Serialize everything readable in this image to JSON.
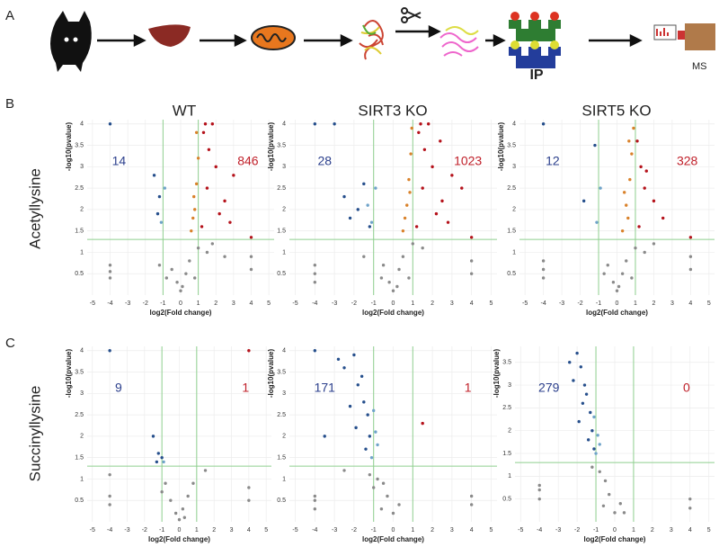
{
  "panel_labels": [
    "A",
    "B",
    "C"
  ],
  "workflow_labels": [
    "IP",
    "MS"
  ],
  "column_titles": [
    "WT",
    "SIRT3 KO",
    "SIRT5 KO"
  ],
  "row_labels": [
    "Acetyllysine",
    "Succinyllysine"
  ],
  "chart_data": [
    {
      "type": "scatter",
      "x_label": "log2(Fold change)",
      "y_label": "-log10(pvalue)",
      "xlim": [
        -5.3,
        5.3
      ],
      "ylim": [
        0,
        4.1
      ],
      "xticks": [
        -5,
        -4,
        -3,
        -2,
        -1,
        0,
        1,
        2,
        3,
        4,
        5
      ],
      "yticks": [
        0.5,
        1,
        1.5,
        2,
        2.5,
        3,
        3.5,
        4
      ],
      "grid": true,
      "x_thresholds": [
        -1,
        1
      ],
      "y_threshold": 1.3,
      "down_count": 14,
      "up_count": 846,
      "series": [
        {
          "color": "#8a8a8a",
          "x": [
            -4,
            -4,
            -4,
            0,
            0.3,
            -0.5,
            0.5,
            1,
            -0.2,
            4,
            4,
            0.8,
            -1.2,
            1.5,
            2.5,
            0.1,
            -0.8,
            1.8
          ],
          "values": [
            0.4,
            0.55,
            0.7,
            0.1,
            0.5,
            0.6,
            0.8,
            1.1,
            0.3,
            0.6,
            0.9,
            0.4,
            0.7,
            1.0,
            0.9,
            0.2,
            0.4,
            1.2
          ]
        },
        {
          "color": "#d9822b",
          "x": [
            0.6,
            0.8,
            0.9,
            1.0,
            0.7,
            0.9,
            0.75
          ],
          "values": [
            1.5,
            2,
            2.6,
            3.2,
            1.8,
            3.8,
            2.3
          ]
        },
        {
          "color": "#b5121b",
          "x": [
            1.2,
            1.5,
            2,
            2.5,
            3,
            1.3,
            1.8,
            2.2,
            4,
            1.6,
            2.8,
            1.4
          ],
          "values": [
            1.6,
            2.5,
            3,
            2.2,
            2.8,
            3.8,
            4,
            1.9,
            1.35,
            3.4,
            1.7,
            4
          ]
        },
        {
          "color": "#264f8c",
          "x": [
            -4,
            -1.2,
            -1.5,
            -1.3
          ],
          "values": [
            4,
            2.3,
            2.8,
            1.9
          ]
        },
        {
          "color": "#6fa3c9",
          "x": [
            -1.1,
            -0.9
          ],
          "values": [
            1.7,
            2.5
          ]
        }
      ]
    },
    {
      "type": "scatter",
      "x_label": "log2(Fold change)",
      "y_label": "-log10(pvalue)",
      "xlim": [
        -5.3,
        5.3
      ],
      "ylim": [
        0,
        4.1
      ],
      "xticks": [
        -5,
        -4,
        -3,
        -2,
        -1,
        0,
        1,
        2,
        3,
        4,
        5
      ],
      "yticks": [
        0.5,
        1,
        1.5,
        2,
        2.5,
        3,
        3.5,
        4
      ],
      "grid": true,
      "x_thresholds": [
        -1,
        1
      ],
      "y_threshold": 1.3,
      "down_count": 28,
      "up_count": 1023,
      "series": [
        {
          "color": "#8a8a8a",
          "x": [
            -4,
            -4,
            -4,
            0,
            0.3,
            -0.5,
            0.5,
            1,
            -0.2,
            4,
            4,
            0.8,
            -1.5,
            1.5,
            -0.6,
            0.2
          ],
          "values": [
            0.3,
            0.5,
            0.7,
            0.1,
            0.6,
            0.7,
            0.9,
            1.2,
            0.3,
            0.5,
            0.8,
            0.4,
            0.9,
            1.1,
            0.4,
            0.2
          ]
        },
        {
          "color": "#d9822b",
          "x": [
            0.5,
            0.7,
            0.8,
            0.9,
            0.6,
            0.95,
            0.85
          ],
          "values": [
            1.5,
            2.1,
            2.7,
            3.3,
            1.8,
            3.9,
            2.4
          ]
        },
        {
          "color": "#b5121b",
          "x": [
            1.2,
            1.5,
            2,
            2.5,
            3,
            1.3,
            1.8,
            2.2,
            4,
            1.6,
            2.8,
            1.4,
            3.5,
            2.4
          ],
          "values": [
            1.6,
            2.5,
            3,
            2.2,
            2.8,
            3.8,
            4,
            1.9,
            1.35,
            3.4,
            1.7,
            4,
            2.5,
            3.6
          ]
        },
        {
          "color": "#264f8c",
          "x": [
            -4,
            -3,
            -2.5,
            -1.8,
            -1.5,
            -2.2,
            -1.2
          ],
          "values": [
            4,
            4,
            2.3,
            2.0,
            2.6,
            1.8,
            1.6
          ]
        },
        {
          "color": "#6fa3c9",
          "x": [
            -1.1,
            -0.9,
            -1.3
          ],
          "values": [
            1.7,
            2.5,
            2.1
          ]
        }
      ]
    },
    {
      "type": "scatter",
      "x_label": "log2(Fold change)",
      "y_label": "-log10(pvalue)",
      "xlim": [
        -5.3,
        5.3
      ],
      "ylim": [
        0,
        4.1
      ],
      "xticks": [
        -5,
        -4,
        -3,
        -2,
        -1,
        0,
        1,
        2,
        3,
        4,
        5
      ],
      "yticks": [
        0.5,
        1,
        1.5,
        2,
        2.5,
        3,
        3.5,
        4
      ],
      "grid": true,
      "x_thresholds": [
        -1,
        1
      ],
      "y_threshold": 1.3,
      "down_count": 12,
      "up_count": 328,
      "series": [
        {
          "color": "#8a8a8a",
          "x": [
            -4,
            -4,
            -4,
            0,
            0.3,
            -0.5,
            0.5,
            1,
            -0.2,
            4,
            4,
            0.8,
            1.5,
            -0.7,
            0.1,
            2
          ],
          "values": [
            0.4,
            0.6,
            0.8,
            0.1,
            0.5,
            0.7,
            0.8,
            1.1,
            0.3,
            0.6,
            0.9,
            0.4,
            1.0,
            0.5,
            0.2,
            1.2
          ]
        },
        {
          "color": "#d9822b",
          "x": [
            0.3,
            0.5,
            0.7,
            0.8,
            0.6,
            0.9,
            0.4,
            0.65
          ],
          "values": [
            1.5,
            2.1,
            2.7,
            3.3,
            1.8,
            3.9,
            2.4,
            3.6
          ]
        },
        {
          "color": "#b5121b",
          "x": [
            1.2,
            1.5,
            2,
            2.5,
            1.3,
            1.1,
            4,
            1.6
          ],
          "values": [
            1.6,
            2.5,
            2.2,
            1.8,
            3.0,
            3.6,
            1.35,
            2.9
          ]
        },
        {
          "color": "#264f8c",
          "x": [
            -4,
            -1.2,
            -1.8
          ],
          "values": [
            4,
            3.5,
            2.2
          ]
        },
        {
          "color": "#6fa3c9",
          "x": [
            -1.1,
            -0.9
          ],
          "values": [
            1.7,
            2.5
          ]
        }
      ]
    },
    {
      "type": "scatter",
      "x_label": "log2(Fold change)",
      "y_label": "-log10(pvalue)",
      "xlim": [
        -5.3,
        5.3
      ],
      "ylim": [
        0,
        4.1
      ],
      "xticks": [
        -5,
        -4,
        -3,
        -2,
        -1,
        0,
        1,
        2,
        3,
        4,
        5
      ],
      "yticks": [
        0.5,
        1,
        1.5,
        2,
        2.5,
        3,
        3.5,
        4
      ],
      "grid": true,
      "x_thresholds": [
        -1,
        1
      ],
      "y_threshold": 1.3,
      "down_count": 9,
      "up_count": 1,
      "series": [
        {
          "color": "#8a8a8a",
          "x": [
            -4,
            -4,
            -4,
            -0.5,
            -0.2,
            0,
            0.2,
            0.5,
            -0.8,
            0.8,
            4,
            4,
            1.5,
            -1,
            0.3
          ],
          "values": [
            0.4,
            0.6,
            1.1,
            0.5,
            0.2,
            0.05,
            0.3,
            0.6,
            0.9,
            0.9,
            0.5,
            0.8,
            1.2,
            0.7,
            0.1
          ]
        },
        {
          "color": "#264f8c",
          "x": [
            -4,
            -1.5,
            -1.2,
            -1,
            -1.3
          ],
          "values": [
            4,
            2,
            1.6,
            1.5,
            1.4
          ]
        },
        {
          "color": "#b5121b",
          "x": [
            4
          ],
          "values": [
            4
          ]
        },
        {
          "color": "#6fa3c9",
          "x": [
            -0.9
          ],
          "values": [
            1.4
          ]
        }
      ]
    },
    {
      "type": "scatter",
      "x_label": "log2(Fold change)",
      "y_label": "-log10(pvalue)",
      "xlim": [
        -5.3,
        5.3
      ],
      "ylim": [
        0,
        4.1
      ],
      "xticks": [
        -5,
        -4,
        -3,
        -2,
        -1,
        0,
        1,
        2,
        3,
        4,
        5
      ],
      "yticks": [
        0.5,
        1,
        1.5,
        2,
        2.5,
        3,
        3.5,
        4
      ],
      "grid": true,
      "x_thresholds": [
        -1,
        1
      ],
      "y_threshold": 1.3,
      "down_count": 171,
      "up_count": 1,
      "series": [
        {
          "color": "#8a8a8a",
          "x": [
            -4,
            -4,
            -4,
            -0.5,
            -0.8,
            -0.3,
            0,
            0.3,
            -1.2,
            4,
            4,
            -2.5,
            -0.6,
            -1
          ],
          "values": [
            0.3,
            0.5,
            0.6,
            0.9,
            1.0,
            0.6,
            0.2,
            0.4,
            1.1,
            0.4,
            0.6,
            1.2,
            0.3,
            0.8
          ]
        },
        {
          "color": "#264f8c",
          "x": [
            -4,
            -2.5,
            -2,
            -1.8,
            -1.5,
            -1.3,
            -1.2,
            -2.2,
            -1.6,
            -1.4,
            -2.8,
            -3.5,
            -1.9
          ],
          "values": [
            4,
            3.6,
            3.9,
            3.2,
            2.8,
            2.5,
            2.0,
            2.7,
            3.4,
            1.7,
            3.8,
            2.0,
            2.2
          ]
        },
        {
          "color": "#6fa3c9",
          "x": [
            -1.1,
            -0.9,
            -1.0,
            -0.8
          ],
          "values": [
            1.5,
            2.1,
            2.6,
            1.8
          ]
        },
        {
          "color": "#b5121b",
          "x": [
            1.5
          ],
          "values": [
            2.3
          ]
        }
      ]
    },
    {
      "type": "scatter",
      "x_label": "log2(Fold change)",
      "y_label": "-log10(pvalue)",
      "xlim": [
        -5.3,
        5.3
      ],
      "ylim": [
        0,
        3.85
      ],
      "xticks": [
        -5,
        -4,
        -3,
        -2,
        -1,
        0,
        1,
        2,
        3,
        4,
        5
      ],
      "yticks": [
        0.5,
        1,
        1.5,
        2,
        2.5,
        3,
        3.5
      ],
      "grid": true,
      "x_thresholds": [
        -1,
        1
      ],
      "y_threshold": 1.3,
      "down_count": 279,
      "up_count": 0,
      "series": [
        {
          "color": "#8a8a8a",
          "x": [
            -4,
            -4,
            -4,
            -0.5,
            -0.8,
            -0.3,
            0,
            0.3,
            -1.2,
            4,
            4,
            0.5,
            -0.6
          ],
          "values": [
            0.5,
            0.7,
            0.8,
            0.9,
            1.1,
            0.6,
            0.2,
            0.4,
            1.2,
            0.3,
            0.5,
            0.2,
            0.35
          ]
        },
        {
          "color": "#264f8c",
          "x": [
            -2,
            -1.8,
            -1.6,
            -1.5,
            -1.3,
            -1.2,
            -2.2,
            -1.4,
            -1.7,
            -1.9,
            -2.4,
            -1.1
          ],
          "values": [
            3.7,
            3.4,
            3.0,
            2.8,
            2.4,
            2.0,
            3.1,
            1.8,
            2.6,
            2.2,
            3.5,
            1.6
          ]
        },
        {
          "color": "#6fa3c9",
          "x": [
            -1.0,
            -0.9,
            -1.1,
            -0.8
          ],
          "values": [
            1.5,
            1.9,
            2.3,
            1.7
          ]
        }
      ]
    }
  ]
}
